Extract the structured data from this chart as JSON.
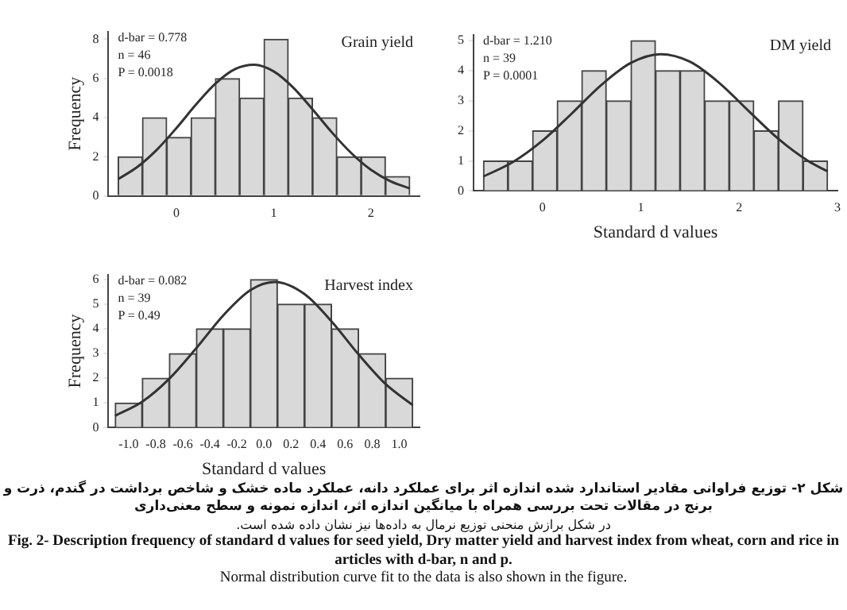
{
  "chart_data": [
    {
      "type": "histogram",
      "title": "Grain yield",
      "ylabel": "Frequency",
      "annotations": [
        "d-bar = 0.778",
        "n = 46",
        "P = 0.0018"
      ],
      "bins": [
        -0.6,
        -0.35,
        -0.1,
        0.15,
        0.4,
        0.65,
        0.9,
        1.15,
        1.4,
        1.65,
        1.9,
        2.15,
        2.4
      ],
      "values": [
        2,
        4,
        3,
        4,
        6,
        5,
        8,
        5,
        4,
        2,
        2,
        1
      ],
      "color": "#d9d9d9",
      "xlim": [
        -0.7,
        2.5
      ],
      "xticks": [
        0,
        1,
        2
      ],
      "ylim": [
        0,
        8.4
      ],
      "yticks": [
        0,
        2,
        4,
        6,
        8
      ],
      "grid": false,
      "legend": false,
      "series": [
        {
          "type": "line",
          "color": "#333333",
          "marker": "none",
          "x": [
            -0.6,
            -0.4,
            -0.2,
            0,
            0.2,
            0.4,
            0.6,
            0.8,
            1.0,
            1.2,
            1.4,
            1.6,
            1.8,
            2.0,
            2.2,
            2.4
          ],
          "values": [
            0.86,
            1.49,
            2.37,
            3.47,
            4.66,
            5.73,
            6.47,
            6.7,
            6.36,
            5.54,
            4.42,
            3.24,
            2.18,
            1.34,
            0.76,
            0.39
          ]
        }
      ]
    },
    {
      "type": "histogram",
      "title": "DM yield",
      "xlabel": "Standard d values",
      "annotations": [
        "d-bar = 1.210",
        "n = 39",
        "P = 0.0001"
      ],
      "bins": [
        -0.6,
        -0.35,
        -0.1,
        0.15,
        0.4,
        0.65,
        0.9,
        1.15,
        1.4,
        1.65,
        1.9,
        2.15,
        2.4,
        2.65,
        2.9
      ],
      "values": [
        1,
        1,
        2,
        3,
        4,
        3,
        5,
        4,
        4,
        3,
        3,
        2,
        3,
        1
      ],
      "color": "#d9d9d9",
      "xlim": [
        -0.7,
        3
      ],
      "xticks": [
        0,
        1,
        2,
        3
      ],
      "ylim": [
        0,
        5.2
      ],
      "yticks": [
        0,
        1,
        2,
        3,
        4,
        5
      ],
      "grid": false,
      "legend": false,
      "series": [
        {
          "type": "line",
          "color": "#333333",
          "marker": "none",
          "x": [
            -0.6,
            -0.3,
            0,
            0.3,
            0.6,
            0.9,
            1.2,
            1.5,
            1.8,
            2.1,
            2.4,
            2.7,
            2.9
          ],
          "values": [
            0.48,
            0.96,
            1.67,
            2.58,
            3.53,
            4.26,
            4.55,
            4.3,
            3.59,
            2.65,
            1.73,
            1.0,
            0.65
          ]
        }
      ]
    },
    {
      "type": "histogram",
      "title": "Harvest index",
      "xlabel": "Standard d values",
      "ylabel": "Frequency",
      "annotations": [
        "d-bar = 0.082",
        "n = 39",
        "P = 0.49"
      ],
      "bins": [
        -1.1,
        -0.9,
        -0.7,
        -0.5,
        -0.3,
        -0.1,
        0.1,
        0.3,
        0.5,
        0.7,
        0.9,
        1.1
      ],
      "values": [
        1,
        2,
        3,
        4,
        4,
        6,
        5,
        5,
        4,
        3,
        2
      ],
      "color": "#d9d9d9",
      "xlim": [
        -1.15,
        1.15
      ],
      "xticks": [
        {
          "value": -1,
          "label": "-1.0"
        },
        -0.8,
        -0.6,
        -0.4,
        -0.2,
        {
          "value": 0,
          "label": "0.0"
        },
        0.2,
        0.4,
        0.6,
        0.8,
        {
          "value": 1,
          "label": "1.0"
        }
      ],
      "ylim": [
        0,
        6.2
      ],
      "yticks": [
        0,
        1,
        2,
        3,
        4,
        5,
        6
      ],
      "grid": false,
      "legend": false,
      "series": [
        {
          "type": "line",
          "color": "#333333",
          "marker": "none",
          "x": [
            -1.1,
            -0.9,
            -0.7,
            -0.5,
            -0.3,
            -0.1,
            0.08,
            0.3,
            0.5,
            0.7,
            0.9,
            1.1
          ],
          "values": [
            0.48,
            1.05,
            1.98,
            3.22,
            4.55,
            5.57,
            5.9,
            5.41,
            4.3,
            2.96,
            1.76,
            0.91
          ]
        }
      ]
    },
    {
      "type": "other",
      "annotations": [
        "شکل ۲- توزیع فراوانی مقادیر استاندارد شده اندازه اثر برای عملکرد دانه، عملکرد ماده خشک و شاخص برداشت در گندم، ذرت و برنج در مقالات تحت بررسی همراه با میانگین اندازه اثر، اندازه نمونه و سطح معنی‌داری",
        "در شکل برازش منحنی توزیع نرمال به داده‌ها نیز نشان داده شده است.",
        "Fig. 2- Description frequency of standard d values for seed yield, Dry matter yield and harvest index from wheat, corn and rice in articles with d-bar, n and p.",
        "Normal distribution curve fit to the data is also shown in the figure."
      ]
    }
  ]
}
